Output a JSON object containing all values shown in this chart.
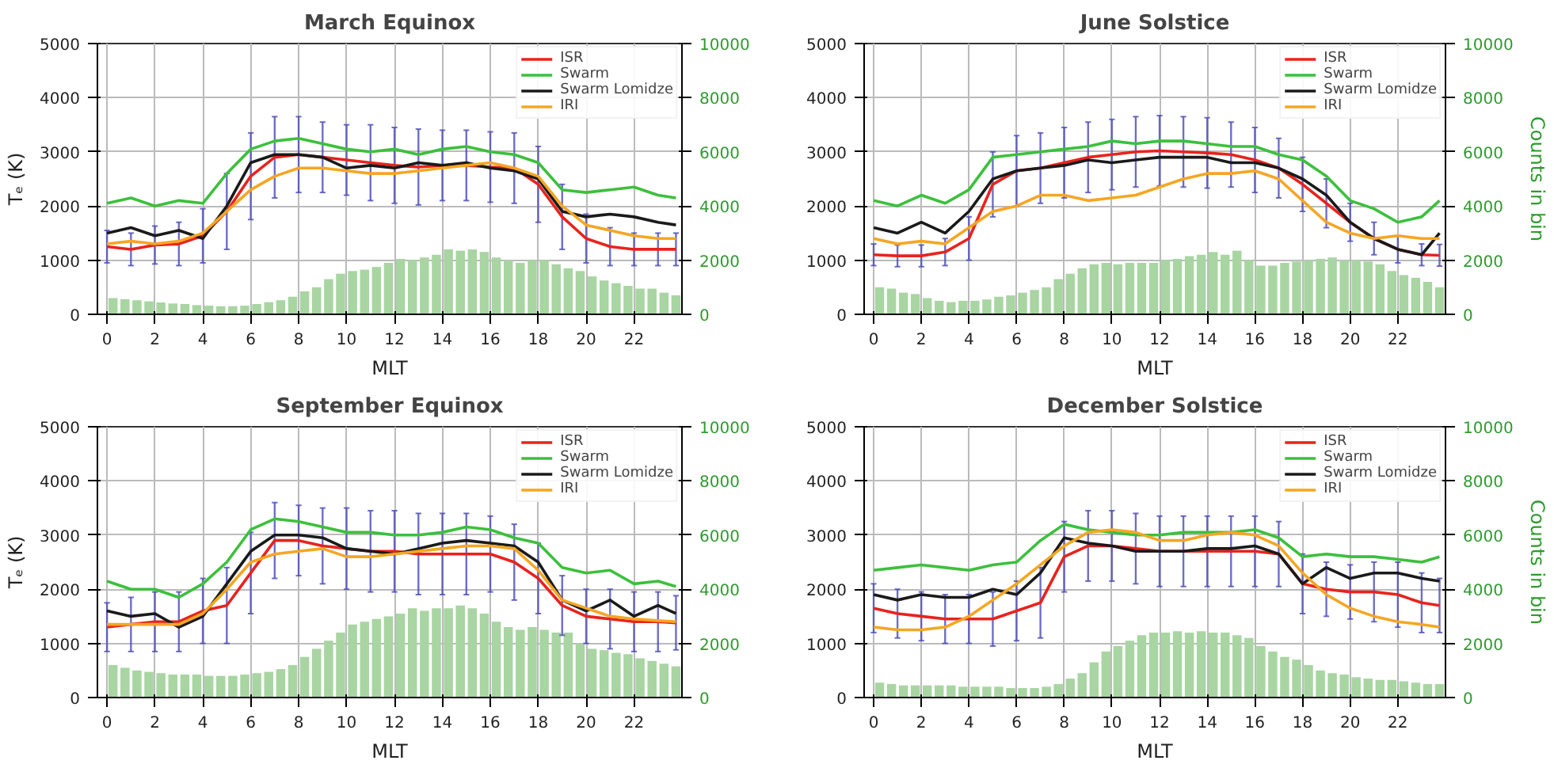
{
  "chart_data": [
    {
      "type": "line",
      "title": "March Equinox",
      "xlabel": "MLT",
      "ylabel": "Tₑ (K)",
      "xlim": [
        -0.4,
        24
      ],
      "xticks": [
        0,
        2,
        4,
        6,
        8,
        10,
        12,
        14,
        16,
        18,
        20,
        22
      ],
      "ylim": [
        0,
        5000
      ],
      "yticks": [
        0,
        1000,
        2000,
        3000,
        4000,
        5000
      ],
      "y2lim": [
        0,
        10000
      ],
      "y2ticks": [
        0,
        2000,
        4000,
        6000,
        8000,
        10000
      ],
      "grid": true,
      "legend": "top right",
      "x": [
        0,
        1,
        2,
        3,
        4,
        5,
        6,
        7,
        8,
        9,
        10,
        11,
        12,
        13,
        14,
        15,
        16,
        17,
        18,
        19,
        20,
        21,
        22,
        23,
        23.75
      ],
      "series": [
        {
          "type": "bar",
          "axis": "y2",
          "color": "#a8d5a2",
          "x": [
            0.25,
            0.75,
            1.25,
            1.75,
            2.25,
            2.75,
            3.25,
            3.75,
            4.25,
            4.75,
            5.25,
            5.75,
            6.25,
            6.75,
            7.25,
            7.75,
            8.25,
            8.75,
            9.25,
            9.75,
            10.25,
            10.75,
            11.25,
            11.75,
            12.25,
            12.75,
            13.25,
            13.75,
            14.25,
            14.75,
            15.25,
            15.75,
            16.25,
            16.75,
            17.25,
            17.75,
            18.25,
            18.75,
            19.25,
            19.75,
            20.25,
            20.75,
            21.25,
            21.75,
            22.25,
            22.75,
            23.25,
            23.75
          ],
          "values": [
            600,
            560,
            520,
            480,
            440,
            400,
            380,
            340,
            320,
            300,
            300,
            320,
            380,
            450,
            520,
            650,
            850,
            1000,
            1300,
            1500,
            1600,
            1650,
            1750,
            1900,
            2050,
            2000,
            2100,
            2200,
            2400,
            2350,
            2400,
            2300,
            2100,
            2000,
            1900,
            2000,
            2000,
            1850,
            1700,
            1600,
            1400,
            1250,
            1150,
            1050,
            950,
            950,
            800,
            700
          ]
        },
        {
          "name": "ISR",
          "color": "#e8231d",
          "values": [
            1250,
            1200,
            1280,
            1300,
            1450,
            1900,
            2550,
            2900,
            2950,
            2900,
            2850,
            2800,
            2750,
            2720,
            2750,
            2750,
            2720,
            2700,
            2400,
            1800,
            1400,
            1250,
            1200,
            1200,
            1200
          ],
          "errors": [
            300,
            300,
            350,
            400,
            500,
            700,
            800,
            750,
            700,
            650,
            650,
            700,
            700,
            700,
            650,
            650,
            650,
            650,
            700,
            600,
            450,
            350,
            300,
            300,
            300
          ]
        },
        {
          "name": "Swarm",
          "color": "#3cc03c",
          "values": [
            2050,
            2150,
            2000,
            2100,
            2050,
            2600,
            3050,
            3200,
            3250,
            3150,
            3050,
            3000,
            3050,
            2950,
            3050,
            3100,
            3000,
            2950,
            2800,
            2300,
            2250,
            2300,
            2350,
            2200,
            2150
          ]
        },
        {
          "name": "Swarm Lomidze",
          "color": "#1a1a1a",
          "values": [
            1500,
            1600,
            1450,
            1550,
            1400,
            2000,
            2800,
            2950,
            2950,
            2900,
            2700,
            2750,
            2700,
            2800,
            2750,
            2800,
            2700,
            2650,
            2500,
            1900,
            1800,
            1850,
            1800,
            1700,
            1650
          ]
        },
        {
          "name": "IRI",
          "color": "#f5a623",
          "values": [
            1300,
            1350,
            1300,
            1350,
            1500,
            1900,
            2300,
            2550,
            2700,
            2700,
            2650,
            2600,
            2600,
            2650,
            2700,
            2750,
            2800,
            2700,
            2550,
            2000,
            1650,
            1550,
            1450,
            1400,
            1400
          ]
        }
      ]
    },
    {
      "type": "line",
      "title": "June Solstice",
      "xlabel": "MLT",
      "y2label": "Counts in bin",
      "xlim": [
        -0.4,
        24
      ],
      "xticks": [
        0,
        2,
        4,
        6,
        8,
        10,
        12,
        14,
        16,
        18,
        20,
        22
      ],
      "ylim": [
        0,
        5000
      ],
      "yticks": [
        0,
        1000,
        2000,
        3000,
        4000,
        5000
      ],
      "y2lim": [
        0,
        10000
      ],
      "y2ticks": [
        0,
        2000,
        4000,
        6000,
        8000,
        10000
      ],
      "grid": true,
      "legend": "top right",
      "x": [
        0,
        1,
        2,
        3,
        4,
        5,
        6,
        7,
        8,
        9,
        10,
        11,
        12,
        13,
        14,
        15,
        16,
        17,
        18,
        19,
        20,
        21,
        22,
        23,
        23.75
      ],
      "series": [
        {
          "type": "bar",
          "axis": "y2",
          "color": "#a8d5a2",
          "x": [
            0.25,
            0.75,
            1.25,
            1.75,
            2.25,
            2.75,
            3.25,
            3.75,
            4.25,
            4.75,
            5.25,
            5.75,
            6.25,
            6.75,
            7.25,
            7.75,
            8.25,
            8.75,
            9.25,
            9.75,
            10.25,
            10.75,
            11.25,
            11.75,
            12.25,
            12.75,
            13.25,
            13.75,
            14.25,
            14.75,
            15.25,
            15.75,
            16.25,
            16.75,
            17.25,
            17.75,
            18.25,
            18.75,
            19.25,
            19.75,
            20.25,
            20.75,
            21.25,
            21.75,
            22.25,
            22.75,
            23.25,
            23.75
          ],
          "values": [
            1000,
            950,
            800,
            750,
            600,
            500,
            450,
            500,
            500,
            550,
            650,
            700,
            800,
            900,
            1000,
            1300,
            1500,
            1700,
            1850,
            1900,
            1850,
            1900,
            1900,
            1900,
            2000,
            2050,
            2150,
            2200,
            2300,
            2200,
            2350,
            2000,
            1800,
            1800,
            1900,
            1950,
            2000,
            2050,
            2100,
            2000,
            2000,
            1950,
            1850,
            1600,
            1450,
            1350,
            1200,
            1000
          ]
        },
        {
          "name": "ISR",
          "color": "#e8231d",
          "values": [
            1100,
            1080,
            1080,
            1150,
            1400,
            2400,
            2650,
            2700,
            2800,
            2900,
            2950,
            3000,
            3020,
            3000,
            2980,
            2950,
            2850,
            2700,
            2400,
            2050,
            1700,
            1400,
            1200,
            1100,
            1090
          ],
          "errors": [
            200,
            200,
            200,
            250,
            400,
            600,
            650,
            650,
            650,
            650,
            650,
            650,
            650,
            650,
            650,
            600,
            600,
            550,
            500,
            450,
            350,
            300,
            250,
            200,
            200
          ]
        },
        {
          "name": "Swarm",
          "color": "#3cc03c",
          "values": [
            2100,
            2000,
            2200,
            2050,
            2300,
            2900,
            2950,
            3000,
            3050,
            3100,
            3200,
            3150,
            3200,
            3200,
            3150,
            3100,
            3100,
            2950,
            2850,
            2550,
            2100,
            1950,
            1700,
            1800,
            2100
          ]
        },
        {
          "name": "Swarm Lomidze",
          "color": "#1a1a1a",
          "values": [
            1600,
            1500,
            1700,
            1500,
            1900,
            2500,
            2650,
            2700,
            2750,
            2850,
            2800,
            2850,
            2900,
            2900,
            2900,
            2800,
            2800,
            2700,
            2500,
            2200,
            1700,
            1400,
            1200,
            1100,
            1500
          ]
        },
        {
          "name": "IRI",
          "color": "#f5a623",
          "values": [
            1400,
            1300,
            1350,
            1300,
            1600,
            1900,
            2000,
            2200,
            2200,
            2100,
            2150,
            2200,
            2350,
            2500,
            2600,
            2600,
            2650,
            2500,
            2100,
            1700,
            1500,
            1400,
            1450,
            1400,
            1400
          ]
        }
      ]
    },
    {
      "type": "line",
      "title": "September Equinox",
      "xlabel": "MLT",
      "ylabel": "Tₑ (K)",
      "xlim": [
        -0.4,
        24
      ],
      "xticks": [
        0,
        2,
        4,
        6,
        8,
        10,
        12,
        14,
        16,
        18,
        20,
        22
      ],
      "ylim": [
        0,
        5000
      ],
      "yticks": [
        0,
        1000,
        2000,
        3000,
        4000,
        5000
      ],
      "y2lim": [
        0,
        10000
      ],
      "y2ticks": [
        0,
        2000,
        4000,
        6000,
        8000,
        10000
      ],
      "grid": true,
      "legend": "top right",
      "x": [
        0,
        1,
        2,
        3,
        4,
        5,
        6,
        7,
        8,
        9,
        10,
        11,
        12,
        13,
        14,
        15,
        16,
        17,
        18,
        19,
        20,
        21,
        22,
        23,
        23.75
      ],
      "series": [
        {
          "type": "bar",
          "axis": "y2",
          "color": "#a8d5a2",
          "x": [
            0.25,
            0.75,
            1.25,
            1.75,
            2.25,
            2.75,
            3.25,
            3.75,
            4.25,
            4.75,
            5.25,
            5.75,
            6.25,
            6.75,
            7.25,
            7.75,
            8.25,
            8.75,
            9.25,
            9.75,
            10.25,
            10.75,
            11.25,
            11.75,
            12.25,
            12.75,
            13.25,
            13.75,
            14.25,
            14.75,
            15.25,
            15.75,
            16.25,
            16.75,
            17.25,
            17.75,
            18.25,
            18.75,
            19.25,
            19.75,
            20.25,
            20.75,
            21.25,
            21.75,
            22.25,
            22.75,
            23.25,
            23.75
          ],
          "values": [
            1200,
            1100,
            1000,
            950,
            900,
            850,
            850,
            850,
            800,
            800,
            800,
            850,
            900,
            950,
            1050,
            1200,
            1500,
            1800,
            2100,
            2400,
            2700,
            2800,
            2900,
            3000,
            3100,
            3300,
            3200,
            3300,
            3300,
            3400,
            3300,
            3100,
            2800,
            2600,
            2500,
            2600,
            2500,
            2400,
            2400,
            2000,
            1800,
            1750,
            1650,
            1600,
            1450,
            1350,
            1250,
            1150
          ]
        },
        {
          "name": "ISR",
          "color": "#e8231d",
          "values": [
            1300,
            1350,
            1400,
            1400,
            1600,
            1700,
            2300,
            2900,
            2900,
            2800,
            2750,
            2700,
            2700,
            2650,
            2650,
            2650,
            2650,
            2500,
            2200,
            1700,
            1500,
            1450,
            1400,
            1400,
            1380
          ],
          "errors": [
            450,
            500,
            550,
            550,
            600,
            700,
            750,
            700,
            650,
            700,
            750,
            750,
            750,
            750,
            750,
            750,
            700,
            700,
            650,
            550,
            500,
            550,
            550,
            550,
            500
          ]
        },
        {
          "name": "Swarm",
          "color": "#3cc03c",
          "values": [
            2150,
            2000,
            2000,
            1850,
            2100,
            2500,
            3100,
            3300,
            3250,
            3150,
            3050,
            3050,
            3000,
            3000,
            3050,
            3150,
            3100,
            2950,
            2850,
            2400,
            2300,
            2350,
            2100,
            2150,
            2050
          ]
        },
        {
          "name": "Swarm Lomidze",
          "color": "#1a1a1a",
          "values": [
            1600,
            1500,
            1550,
            1300,
            1500,
            2100,
            2700,
            3000,
            3000,
            2950,
            2750,
            2700,
            2650,
            2750,
            2850,
            2900,
            2850,
            2800,
            2500,
            1800,
            1600,
            1800,
            1500,
            1700,
            1550
          ]
        },
        {
          "name": "IRI",
          "color": "#f5a623",
          "values": [
            1350,
            1350,
            1350,
            1350,
            1550,
            2000,
            2500,
            2650,
            2700,
            2750,
            2600,
            2600,
            2650,
            2700,
            2750,
            2800,
            2800,
            2750,
            2350,
            1800,
            1650,
            1500,
            1450,
            1420,
            1400
          ]
        }
      ]
    },
    {
      "type": "line",
      "title": "December Solstice",
      "xlabel": "MLT",
      "y2label": "Counts in bin",
      "xlim": [
        -0.4,
        24
      ],
      "xticks": [
        0,
        2,
        4,
        6,
        8,
        10,
        12,
        14,
        16,
        18,
        20,
        22
      ],
      "ylim": [
        0,
        5000
      ],
      "yticks": [
        0,
        1000,
        2000,
        3000,
        4000,
        5000
      ],
      "y2lim": [
        0,
        10000
      ],
      "y2ticks": [
        0,
        2000,
        4000,
        6000,
        8000,
        10000
      ],
      "grid": true,
      "legend": "top right",
      "x": [
        0,
        1,
        2,
        3,
        4,
        5,
        6,
        7,
        8,
        9,
        10,
        11,
        12,
        13,
        14,
        15,
        16,
        17,
        18,
        19,
        20,
        21,
        22,
        23,
        23.75
      ],
      "series": [
        {
          "type": "bar",
          "axis": "y2",
          "color": "#a8d5a2",
          "x": [
            0.25,
            0.75,
            1.25,
            1.75,
            2.25,
            2.75,
            3.25,
            3.75,
            4.25,
            4.75,
            5.25,
            5.75,
            6.25,
            6.75,
            7.25,
            7.75,
            8.25,
            8.75,
            9.25,
            9.75,
            10.25,
            10.75,
            11.25,
            11.75,
            12.25,
            12.75,
            13.25,
            13.75,
            14.25,
            14.75,
            15.25,
            15.75,
            16.25,
            16.75,
            17.25,
            17.75,
            18.25,
            18.75,
            19.25,
            19.75,
            20.25,
            20.75,
            21.25,
            21.75,
            22.25,
            22.75,
            23.25,
            23.75
          ],
          "values": [
            550,
            500,
            450,
            450,
            450,
            450,
            450,
            400,
            400,
            400,
            400,
            350,
            350,
            350,
            400,
            500,
            700,
            900,
            1300,
            1700,
            1900,
            2100,
            2300,
            2400,
            2400,
            2450,
            2400,
            2450,
            2400,
            2400,
            2300,
            2200,
            1900,
            1700,
            1500,
            1400,
            1200,
            1000,
            900,
            850,
            750,
            700,
            650,
            650,
            600,
            550,
            500,
            500
          ]
        },
        {
          "name": "ISR",
          "color": "#e8231d",
          "values": [
            1650,
            1550,
            1500,
            1450,
            1450,
            1450,
            1600,
            1750,
            2600,
            2800,
            2800,
            2750,
            2700,
            2700,
            2700,
            2700,
            2700,
            2650,
            2100,
            2000,
            1950,
            1950,
            1900,
            1750,
            1700
          ],
          "errors": [
            450,
            450,
            450,
            450,
            450,
            500,
            550,
            650,
            650,
            650,
            650,
            650,
            650,
            650,
            650,
            650,
            650,
            600,
            550,
            500,
            500,
            550,
            600,
            550,
            500
          ]
        },
        {
          "name": "Swarm",
          "color": "#3cc03c",
          "values": [
            2350,
            2400,
            2450,
            2400,
            2350,
            2450,
            2500,
            2900,
            3200,
            3100,
            3050,
            3000,
            3000,
            3050,
            3050,
            3050,
            3100,
            2950,
            2600,
            2650,
            2600,
            2600,
            2550,
            2500,
            2600
          ]
        },
        {
          "name": "Swarm Lomidze",
          "color": "#1a1a1a",
          "values": [
            1900,
            1800,
            1900,
            1850,
            1850,
            2000,
            1900,
            2300,
            2950,
            2850,
            2800,
            2700,
            2700,
            2700,
            2750,
            2750,
            2800,
            2650,
            2100,
            2400,
            2200,
            2300,
            2300,
            2200,
            2150
          ]
        },
        {
          "name": "IRI",
          "color": "#f5a623",
          "values": [
            1300,
            1250,
            1250,
            1300,
            1500,
            1800,
            2100,
            2450,
            2800,
            3050,
            3100,
            3050,
            2900,
            2900,
            3000,
            3050,
            3000,
            2800,
            2300,
            1900,
            1650,
            1500,
            1400,
            1350,
            1300
          ]
        }
      ]
    }
  ]
}
